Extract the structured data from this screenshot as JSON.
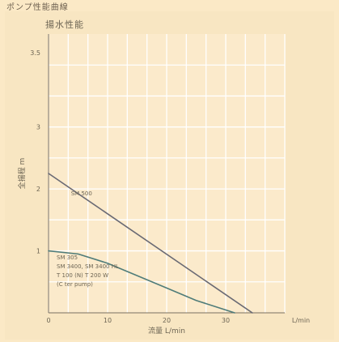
{
  "page": {
    "title": "ポンプ性能曲線"
  },
  "chart_data": {
    "type": "line",
    "title": "揚水性能",
    "xlabel": "流量 L/min",
    "ylabel": "全揚程 m",
    "xlim": [
      0,
      40
    ],
    "ylim": [
      0,
      4.5
    ],
    "x_ticks": [
      "0",
      "10",
      "20",
      "30",
      "L/min"
    ],
    "y_ticks": [
      "1",
      "2",
      "3",
      "3.5"
    ],
    "grid": true,
    "series": [
      {
        "name": "SM 500",
        "color": "#6a6a74",
        "x": [
          0,
          34.5
        ],
        "y": [
          2.25,
          0
        ]
      },
      {
        "name": "SM 305",
        "color": "#4f7c79",
        "x": [
          0,
          5,
          10,
          15,
          20,
          25,
          31.5
        ],
        "y": [
          1.0,
          0.95,
          0.8,
          0.6,
          0.4,
          0.2,
          0
        ]
      }
    ],
    "annotations": {
      "upper_curve_label": "SM 500",
      "lower_curve_labels": [
        "SM 305",
        "SM 3400, SM 3400 HL",
        "T 100 (N) T 200 W",
        "(C ter pump)"
      ]
    }
  }
}
